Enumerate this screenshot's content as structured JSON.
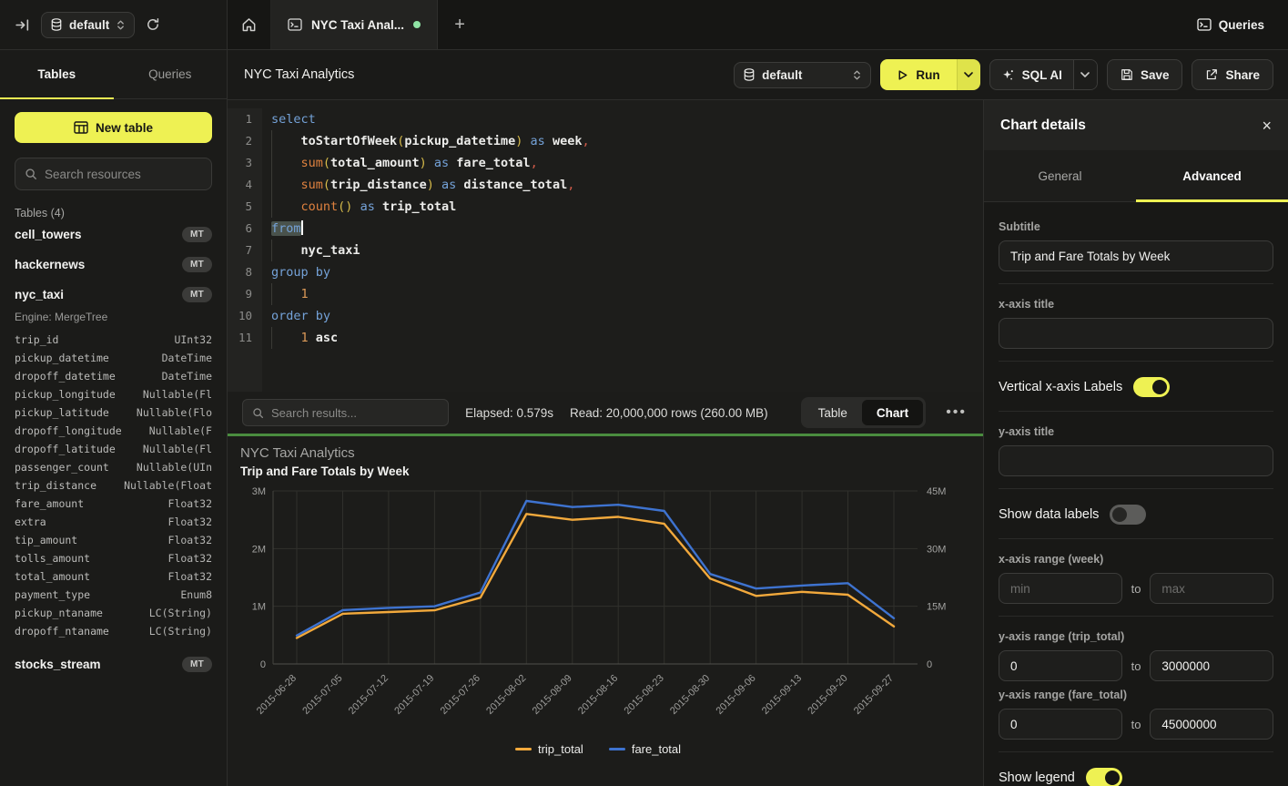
{
  "colors": {
    "accent_yellow": "#eef153",
    "run_progress_green": "#4a8c3f",
    "tab_dot_green": "#8fe3a4",
    "series_orange": "#f2a93c",
    "series_blue": "#3e73d0"
  },
  "topbar": {
    "database": "default",
    "tab_title": "NYC Taxi Anal...",
    "queries_label": "Queries",
    "new_tab_label": "+"
  },
  "sidebar": {
    "tab_tables": "Tables",
    "tab_queries": "Queries",
    "new_table_label": "New table",
    "search_placeholder": "Search resources",
    "tables_heading": "Tables (4)",
    "tables": [
      {
        "name": "cell_towers",
        "badge": "MT"
      },
      {
        "name": "hackernews",
        "badge": "MT"
      },
      {
        "name": "nyc_taxi",
        "badge": "MT"
      },
      {
        "name": "stocks_stream",
        "badge": "MT"
      }
    ],
    "nyc_taxi_engine": "Engine: MergeTree",
    "nyc_taxi_columns": [
      [
        "trip_id",
        "UInt32"
      ],
      [
        "pickup_datetime",
        "DateTime"
      ],
      [
        "dropoff_datetime",
        "DateTime"
      ],
      [
        "pickup_longitude",
        "Nullable(Fl"
      ],
      [
        "pickup_latitude",
        "Nullable(Flo"
      ],
      [
        "dropoff_longitude",
        "Nullable(F"
      ],
      [
        "dropoff_latitude",
        "Nullable(Fl"
      ],
      [
        "passenger_count",
        "Nullable(UIn"
      ],
      [
        "trip_distance",
        "Nullable(Float"
      ],
      [
        "fare_amount",
        "Float32"
      ],
      [
        "extra",
        "Float32"
      ],
      [
        "tip_amount",
        "Float32"
      ],
      [
        "tolls_amount",
        "Float32"
      ],
      [
        "total_amount",
        "Float32"
      ],
      [
        "payment_type",
        "Enum8"
      ],
      [
        "pickup_ntaname",
        "LC(String)"
      ],
      [
        "dropoff_ntaname",
        "LC(String)"
      ]
    ]
  },
  "toolbar": {
    "title": "NYC Taxi Analytics",
    "database": "default",
    "run_label": "Run",
    "sql_ai_label": "SQL AI",
    "save_label": "Save",
    "share_label": "Share"
  },
  "editor": {
    "lines": [
      [
        [
          "k",
          "select"
        ]
      ],
      [
        [
          "w",
          "    "
        ],
        [
          "i",
          "toStartOfWeek"
        ],
        [
          "b",
          "("
        ],
        [
          "i",
          "pickup_datetime"
        ],
        [
          "b",
          ")"
        ],
        [
          "w",
          " "
        ],
        [
          "k",
          "as"
        ],
        [
          "w",
          " "
        ],
        [
          "i",
          "week"
        ],
        [
          "c",
          ","
        ]
      ],
      [
        [
          "w",
          "    "
        ],
        [
          "f",
          "sum"
        ],
        [
          "b",
          "("
        ],
        [
          "i",
          "total_amount"
        ],
        [
          "b",
          ")"
        ],
        [
          "w",
          " "
        ],
        [
          "k",
          "as"
        ],
        [
          "w",
          " "
        ],
        [
          "i",
          "fare_total"
        ],
        [
          "c",
          ","
        ]
      ],
      [
        [
          "w",
          "    "
        ],
        [
          "f",
          "sum"
        ],
        [
          "b",
          "("
        ],
        [
          "i",
          "trip_distance"
        ],
        [
          "b",
          ")"
        ],
        [
          "w",
          " "
        ],
        [
          "k",
          "as"
        ],
        [
          "w",
          " "
        ],
        [
          "i",
          "distance_total"
        ],
        [
          "c",
          ","
        ]
      ],
      [
        [
          "w",
          "    "
        ],
        [
          "f",
          "count"
        ],
        [
          "b",
          "()"
        ],
        [
          "w",
          " "
        ],
        [
          "k",
          "as"
        ],
        [
          "w",
          " "
        ],
        [
          "i",
          "trip_total"
        ]
      ],
      [
        [
          "ksel",
          "from"
        ],
        [
          "caret",
          ""
        ]
      ],
      [
        [
          "w",
          "    "
        ],
        [
          "i",
          "nyc_taxi"
        ]
      ],
      [
        [
          "k",
          "group by"
        ]
      ],
      [
        [
          "w",
          "    "
        ],
        [
          "n",
          "1"
        ]
      ],
      [
        [
          "k",
          "order by"
        ]
      ],
      [
        [
          "w",
          "    "
        ],
        [
          "n",
          "1"
        ],
        [
          "w",
          " "
        ],
        [
          "i",
          "asc"
        ]
      ]
    ]
  },
  "results": {
    "search_placeholder": "Search results...",
    "elapsed": "Elapsed: 0.579s",
    "read": "Read: 20,000,000 rows (260.00 MB)",
    "toggle_table": "Table",
    "toggle_chart": "Chart"
  },
  "chart_data": {
    "type": "line",
    "title": "NYC Taxi Analytics",
    "subtitle": "Trip and Fare Totals by Week",
    "categories": [
      "2015-06-28",
      "2015-07-05",
      "2015-07-12",
      "2015-07-19",
      "2015-07-26",
      "2015-08-02",
      "2015-08-09",
      "2015-08-16",
      "2015-08-23",
      "2015-08-30",
      "2015-09-06",
      "2015-09-13",
      "2015-09-20",
      "2015-09-27"
    ],
    "series": [
      {
        "name": "trip_total",
        "color": "#f2a93c",
        "axis": "left",
        "values": [
          450000,
          870000,
          900000,
          930000,
          1150000,
          2600000,
          2500000,
          2550000,
          2430000,
          1480000,
          1180000,
          1250000,
          1200000,
          650000
        ]
      },
      {
        "name": "fare_total",
        "color": "#3e73d0",
        "axis": "right",
        "values": [
          7400000,
          14000000,
          14600000,
          15000000,
          18600000,
          42400000,
          40800000,
          41400000,
          39800000,
          23400000,
          19600000,
          20400000,
          21000000,
          11900000
        ]
      }
    ],
    "left_axis": {
      "ticks": [
        "0",
        "1M",
        "2M",
        "3M"
      ],
      "min": 0,
      "max": 3000000
    },
    "right_axis": {
      "ticks": [
        "0",
        "15M",
        "30M",
        "45M"
      ],
      "min": 0,
      "max": 45000000
    },
    "legend_position": "bottom",
    "grid": true,
    "x_labels_rotated": true
  },
  "panel": {
    "title": "Chart details",
    "close_glyph": "×",
    "tab_general": "General",
    "tab_advanced": "Advanced",
    "subtitle_label": "Subtitle",
    "subtitle_value": "Trip and Fare Totals by Week",
    "x_axis_title_label": "x-axis title",
    "x_axis_title_value": "",
    "vertical_labels_label": "Vertical x-axis Labels",
    "vertical_labels_on": true,
    "y_axis_title_label": "y-axis title",
    "y_axis_title_value": "",
    "show_data_labels_label": "Show data labels",
    "show_data_labels_on": false,
    "x_range_label": "x-axis range (week)",
    "x_range_min_placeholder": "min",
    "x_range_max_placeholder": "max",
    "to_label": "to",
    "y_range_trip_label": "y-axis range (trip_total)",
    "y_range_trip_min": "0",
    "y_range_trip_max": "3000000",
    "y_range_fare_label": "y-axis range (fare_total)",
    "y_range_fare_min": "0",
    "y_range_fare_max": "45000000",
    "show_legend_label": "Show legend",
    "show_legend_on": true
  }
}
